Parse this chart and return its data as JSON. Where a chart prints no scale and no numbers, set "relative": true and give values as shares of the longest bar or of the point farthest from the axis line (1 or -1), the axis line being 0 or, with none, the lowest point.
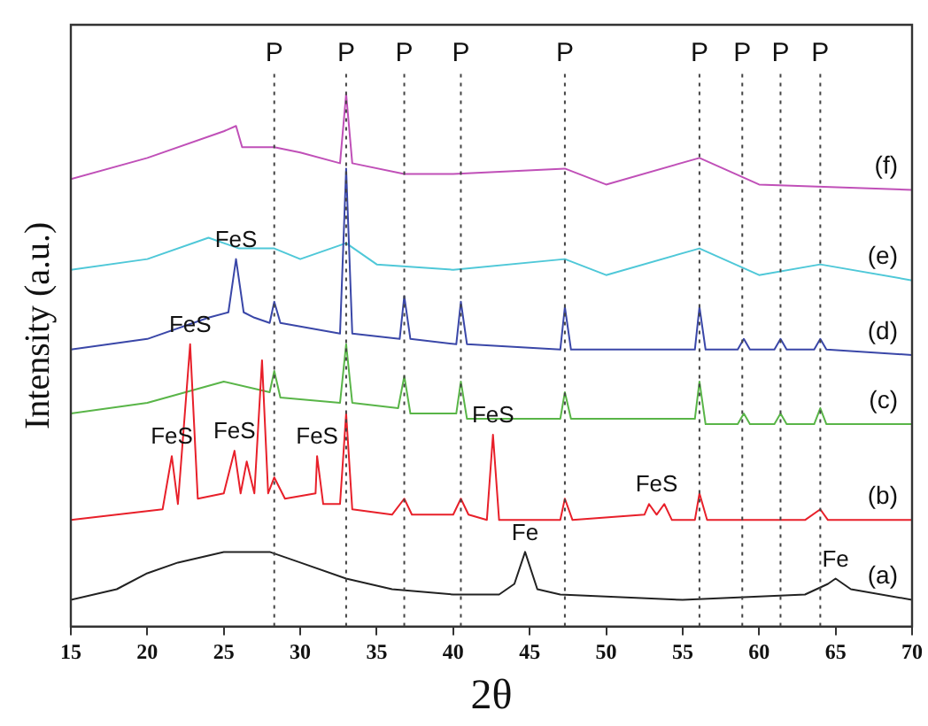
{
  "chart_data": {
    "type": "line",
    "relative": true,
    "xlabel": "2θ",
    "ylabel": "Intensity (a.u.)",
    "xlim": [
      15,
      70
    ],
    "xticks": [
      15,
      20,
      25,
      30,
      35,
      40,
      45,
      50,
      55,
      60,
      65,
      70
    ],
    "tick_labels": "x",
    "grid": false,
    "legend": false,
    "marker": "none",
    "line_style": "solid",
    "series": [
      {
        "name": "(a)",
        "color": "#222222",
        "x": [
          15,
          18,
          20,
          22,
          25,
          28,
          30,
          33,
          36,
          40,
          43,
          44,
          44.7,
          45.5,
          47,
          55,
          63,
          64.5,
          65,
          66,
          70
        ],
        "values": [
          0.05,
          0.07,
          0.1,
          0.12,
          0.14,
          0.14,
          0.12,
          0.09,
          0.07,
          0.06,
          0.06,
          0.08,
          0.14,
          0.07,
          0.06,
          0.05,
          0.06,
          0.08,
          0.09,
          0.07,
          0.05
        ]
      },
      {
        "name": "(b)",
        "color": "#e8202a",
        "x": [
          15,
          18,
          21,
          21.6,
          22,
          22.8,
          23.3,
          25,
          25.7,
          26.1,
          26.5,
          27,
          27.5,
          27.9,
          28.3,
          29,
          31,
          31.1,
          31.5,
          32.6,
          33,
          33.4,
          36,
          36.8,
          37.3,
          40,
          40.5,
          41,
          42.2,
          42.6,
          43,
          47,
          47.3,
          47.8,
          52.5,
          52.8,
          53.3,
          53.8,
          54.3,
          55.8,
          56.1,
          56.6,
          63,
          64,
          64.5,
          70
        ],
        "values": [
          0.2,
          0.21,
          0.22,
          0.32,
          0.23,
          0.53,
          0.24,
          0.25,
          0.33,
          0.25,
          0.31,
          0.25,
          0.5,
          0.25,
          0.28,
          0.24,
          0.25,
          0.32,
          0.23,
          0.23,
          0.4,
          0.22,
          0.21,
          0.24,
          0.21,
          0.21,
          0.24,
          0.21,
          0.2,
          0.36,
          0.2,
          0.2,
          0.24,
          0.2,
          0.21,
          0.23,
          0.21,
          0.23,
          0.2,
          0.2,
          0.25,
          0.2,
          0.2,
          0.22,
          0.2,
          0.2
        ]
      },
      {
        "name": "(c)",
        "color": "#59b548",
        "x": [
          15,
          20,
          25,
          28,
          28.3,
          28.7,
          32.6,
          33,
          33.4,
          36.4,
          36.8,
          37.2,
          40.2,
          40.5,
          40.9,
          47,
          47.3,
          47.7,
          55.8,
          56.1,
          56.5,
          58.6,
          59,
          59.4,
          61,
          61.4,
          61.8,
          63.6,
          64,
          64.4,
          70
        ],
        "values": [
          0.4,
          0.42,
          0.46,
          0.44,
          0.48,
          0.43,
          0.42,
          0.53,
          0.42,
          0.41,
          0.47,
          0.4,
          0.4,
          0.46,
          0.39,
          0.39,
          0.44,
          0.39,
          0.39,
          0.46,
          0.38,
          0.38,
          0.4,
          0.38,
          0.38,
          0.4,
          0.38,
          0.38,
          0.41,
          0.38,
          0.38
        ]
      },
      {
        "name": "(d)",
        "color": "#3a47a8",
        "x": [
          15,
          20,
          24,
          25.3,
          25.8,
          26.3,
          27,
          28,
          28.3,
          28.7,
          32.6,
          33,
          33.4,
          36.5,
          36.8,
          37.2,
          40.2,
          40.5,
          40.9,
          47,
          47.3,
          47.7,
          55.8,
          56.1,
          56.5,
          58.6,
          59,
          59.4,
          61,
          61.4,
          61.8,
          63.6,
          64,
          64.4,
          70
        ],
        "values": [
          0.52,
          0.54,
          0.58,
          0.59,
          0.69,
          0.59,
          0.58,
          0.57,
          0.61,
          0.57,
          0.55,
          0.86,
          0.55,
          0.54,
          0.62,
          0.54,
          0.53,
          0.61,
          0.53,
          0.52,
          0.6,
          0.52,
          0.52,
          0.6,
          0.52,
          0.52,
          0.54,
          0.52,
          0.52,
          0.54,
          0.52,
          0.52,
          0.54,
          0.52,
          0.51
        ]
      },
      {
        "name": "(e)",
        "color": "#4fc8d8",
        "x": [
          15,
          20,
          24,
          26,
          28.3,
          30,
          33,
          35,
          40,
          47.3,
          50,
          56.1,
          60,
          64,
          70
        ],
        "values": [
          0.67,
          0.69,
          0.73,
          0.71,
          0.71,
          0.69,
          0.72,
          0.68,
          0.67,
          0.69,
          0.66,
          0.71,
          0.66,
          0.68,
          0.65
        ]
      },
      {
        "name": "(f)",
        "color": "#c050b8",
        "x": [
          15,
          20,
          25,
          25.8,
          26.2,
          28.3,
          30,
          32.6,
          33,
          33.4,
          36.8,
          40,
          47.3,
          50,
          56.1,
          60,
          70
        ],
        "values": [
          0.84,
          0.88,
          0.93,
          0.94,
          0.9,
          0.9,
          0.89,
          0.87,
          1,
          0.87,
          0.85,
          0.85,
          0.86,
          0.83,
          0.88,
          0.83,
          0.82
        ]
      }
    ],
    "ref_lines": [
      {
        "axis": "x",
        "value": 28.3,
        "label": "P",
        "line_style": "dotted"
      },
      {
        "axis": "x",
        "value": 33,
        "label": "P",
        "line_style": "dotted"
      },
      {
        "axis": "x",
        "value": 36.8,
        "label": "P",
        "line_style": "dotted"
      },
      {
        "axis": "x",
        "value": 40.5,
        "label": "P",
        "line_style": "dotted"
      },
      {
        "axis": "x",
        "value": 47.3,
        "label": "P",
        "line_style": "dotted"
      },
      {
        "axis": "x",
        "value": 56.1,
        "label": "P",
        "line_style": "dotted"
      },
      {
        "axis": "x",
        "value": 58.9,
        "label": "P",
        "line_style": "dotted"
      },
      {
        "axis": "x",
        "value": 61.4,
        "label": "P",
        "line_style": "dotted"
      },
      {
        "axis": "x",
        "value": 64,
        "label": "P",
        "line_style": "dotted"
      }
    ],
    "annotations": [
      {
        "text": "FeS",
        "x": 25.8,
        "y": 0.69
      },
      {
        "text": "FeS",
        "x": 22.8,
        "y": 0.53
      },
      {
        "text": "FeS",
        "x": 21.6,
        "y": 0.32
      },
      {
        "text": "FeS",
        "x": 25.7,
        "y": 0.33
      },
      {
        "text": "FeS",
        "x": 31.1,
        "y": 0.32
      },
      {
        "text": "FeS",
        "x": 42.6,
        "y": 0.36
      },
      {
        "text": "FeS",
        "x": 53.3,
        "y": 0.23
      },
      {
        "text": "Fe",
        "x": 44.7,
        "y": 0.14
      },
      {
        "text": "Fe",
        "x": 65,
        "y": 0.09
      }
    ]
  }
}
